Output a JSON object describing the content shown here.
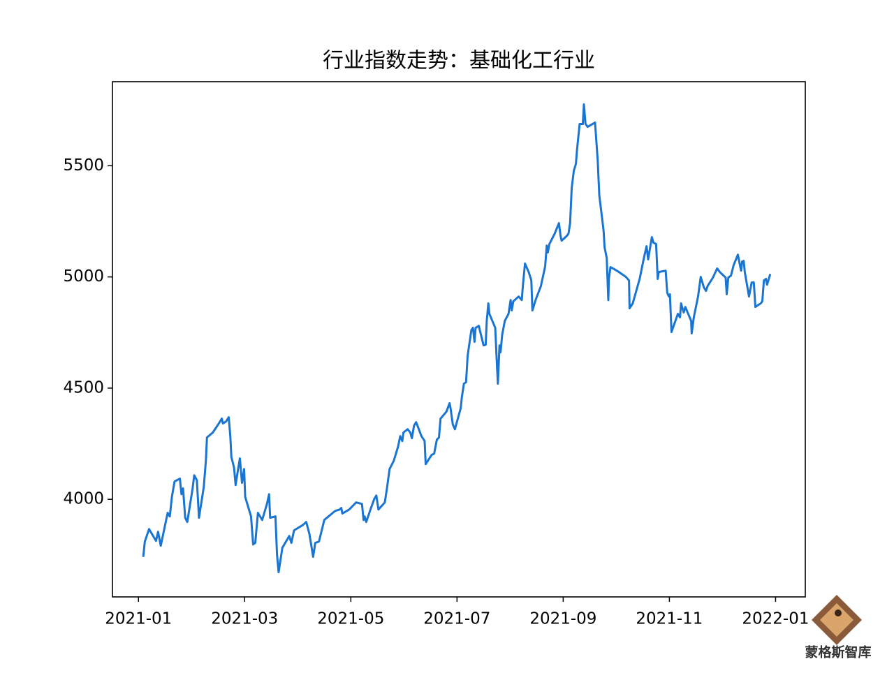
{
  "chart_data": {
    "type": "line",
    "title": "行业指数走势：基础化工行业",
    "color": "#1a74d2",
    "xlim": [
      -0.49,
      12.56
    ],
    "ylim": [
      3561,
      5878
    ],
    "xticks": [
      {
        "value": 0,
        "label": "2021-01"
      },
      {
        "value": 2,
        "label": "2021-03"
      },
      {
        "value": 4,
        "label": "2021-05"
      },
      {
        "value": 6,
        "label": "2021-07"
      },
      {
        "value": 8,
        "label": "2021-09"
      },
      {
        "value": 10,
        "label": "2021-11"
      },
      {
        "value": 12,
        "label": "2022-01"
      }
    ],
    "yticks": [
      4000,
      4500,
      5000,
      5500
    ],
    "grid": false,
    "x": [
      0.09,
      0.12,
      0.2,
      0.33,
      0.37,
      0.42,
      0.55,
      0.59,
      0.63,
      0.68,
      0.78,
      0.81,
      0.84,
      0.88,
      0.92,
      1.02,
      1.05,
      1.1,
      1.14,
      1.23,
      1.27,
      1.29,
      1.4,
      1.53,
      1.57,
      1.59,
      1.65,
      1.7,
      1.73,
      1.75,
      1.8,
      1.83,
      1.86,
      1.91,
      1.95,
      1.99,
      2.01,
      2.12,
      2.16,
      2.2,
      2.25,
      2.33,
      2.42,
      2.46,
      2.48,
      2.58,
      2.61,
      2.64,
      2.67,
      2.71,
      2.84,
      2.88,
      2.93,
      3.1,
      3.16,
      3.22,
      3.29,
      3.33,
      3.4,
      3.5,
      3.66,
      3.71,
      3.79,
      3.82,
      3.84,
      3.97,
      4.1,
      4.21,
      4.24,
      4.26,
      4.29,
      4.37,
      4.44,
      4.48,
      4.52,
      4.64,
      4.68,
      4.73,
      4.81,
      4.89,
      4.93,
      4.97,
      4.99,
      5.07,
      5.12,
      5.15,
      5.19,
      5.23,
      5.33,
      5.39,
      5.41,
      5.52,
      5.57,
      5.62,
      5.66,
      5.69,
      5.8,
      5.86,
      5.88,
      5.92,
      5.96,
      6.07,
      6.09,
      6.13,
      6.17,
      6.2,
      6.27,
      6.3,
      6.33,
      6.35,
      6.41,
      6.5,
      6.54,
      6.56,
      6.59,
      6.61,
      6.72,
      6.75,
      6.77,
      6.8,
      6.82,
      6.85,
      6.9,
      6.97,
      7.01,
      7.03,
      7.06,
      7.16,
      7.22,
      7.24,
      7.28,
      7.35,
      7.4,
      7.42,
      7.48,
      7.58,
      7.66,
      7.69,
      7.71,
      7.74,
      7.84,
      7.92,
      7.95,
      7.97,
      8.07,
      8.1,
      8.13,
      8.16,
      8.2,
      8.24,
      8.26,
      8.31,
      8.37,
      8.39,
      8.42,
      8.46,
      8.6,
      8.65,
      8.68,
      8.76,
      8.78,
      8.82,
      8.85,
      8.86,
      8.89,
      8.94,
      9.05,
      9.18,
      9.24,
      9.25,
      9.31,
      9.44,
      9.52,
      9.57,
      9.6,
      9.63,
      9.67,
      9.7,
      9.75,
      9.78,
      9.8,
      9.93,
      9.96,
      9.99,
      10.01,
      10.04,
      10.16,
      10.2,
      10.22,
      10.27,
      10.3,
      10.41,
      10.42,
      10.46,
      10.54,
      10.59,
      10.65,
      10.69,
      10.72,
      10.82,
      10.9,
      10.95,
      11.06,
      11.08,
      11.11,
      11.16,
      11.21,
      11.29,
      11.35,
      11.37,
      11.4,
      11.42,
      11.5,
      11.55,
      11.59,
      11.62,
      11.72,
      11.75,
      11.78,
      11.82,
      11.84,
      11.9
    ],
    "values": [
      3741,
      3810,
      3866,
      3813,
      3854,
      3791,
      3939,
      3923,
      4011,
      4080,
      4093,
      4023,
      4049,
      3917,
      3898,
      4049,
      4108,
      4086,
      3917,
      4055,
      4174,
      4278,
      4300,
      4347,
      4363,
      4341,
      4350,
      4369,
      4284,
      4190,
      4143,
      4064,
      4111,
      4184,
      4074,
      4136,
      4011,
      3923,
      3797,
      3804,
      3939,
      3907,
      3979,
      4023,
      3917,
      3923,
      3750,
      3672,
      3719,
      3782,
      3835,
      3804,
      3860,
      3885,
      3898,
      3844,
      3741,
      3804,
      3810,
      3907,
      3939,
      3948,
      3954,
      3961,
      3936,
      3954,
      3986,
      3979,
      3907,
      3923,
      3898,
      3954,
      4001,
      4017,
      3954,
      3986,
      4049,
      4136,
      4174,
      4237,
      4284,
      4262,
      4300,
      4315,
      4300,
      4275,
      4331,
      4347,
      4284,
      4262,
      4158,
      4199,
      4206,
      4268,
      4278,
      4363,
      4394,
      4432,
      4407,
      4337,
      4315,
      4410,
      4457,
      4520,
      4526,
      4645,
      4761,
      4771,
      4708,
      4771,
      4780,
      4692,
      4695,
      4802,
      4881,
      4834,
      4771,
      4614,
      4520,
      4692,
      4661,
      4739,
      4802,
      4834,
      4896,
      4849,
      4890,
      4912,
      4896,
      4959,
      5060,
      5022,
      4984,
      4849,
      4896,
      4959,
      5047,
      5141,
      5110,
      5148,
      5195,
      5242,
      5185,
      5163,
      5185,
      5195,
      5242,
      5399,
      5477,
      5509,
      5571,
      5688,
      5688,
      5776,
      5688,
      5675,
      5694,
      5524,
      5367,
      5210,
      5132,
      5085,
      4896,
      4991,
      5044,
      5038,
      5022,
      5000,
      4984,
      4859,
      4881,
      4991,
      5085,
      5138,
      5079,
      5122,
      5179,
      5154,
      5148,
      4991,
      5022,
      5028,
      4928,
      4912,
      4922,
      4752,
      4834,
      4818,
      4881,
      4840,
      4865,
      4802,
      4746,
      4818,
      4912,
      5000,
      4953,
      4937,
      4959,
      4997,
      5038,
      5022,
      4997,
      4922,
      4997,
      5006,
      5053,
      5100,
      5028,
      5069,
      5072,
      5022,
      4912,
      4975,
      4975,
      4865,
      4881,
      4890,
      4984,
      4991,
      4965,
      5013
    ]
  },
  "watermark": {
    "name": "蒙格斯智库"
  }
}
